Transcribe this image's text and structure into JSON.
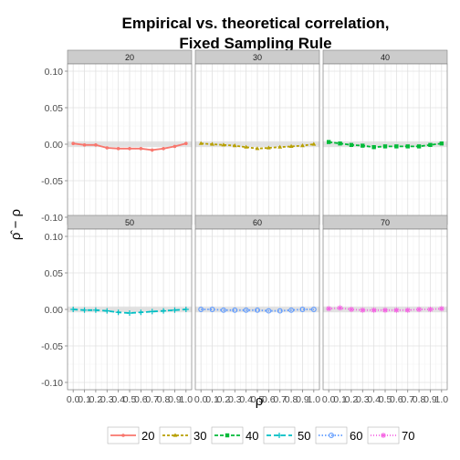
{
  "chart_data": {
    "type": "line",
    "title": [
      "Empirical vs. theoretical correlation,",
      "Fixed Sampling Rule"
    ],
    "xlabel": "ρ",
    "ylabel": "ρ̂ − ρ",
    "x": [
      0.0,
      0.1,
      0.2,
      0.3,
      0.4,
      0.5,
      0.6,
      0.7,
      0.8,
      0.9,
      1.0
    ],
    "x_tick_labels": [
      "0.0",
      "0.1",
      "0.2",
      "0.3",
      "0.4",
      "0.5",
      "0.6",
      "0.7",
      "0.8",
      "0.9",
      "1.0"
    ],
    "y_ticks": [
      0.1,
      0.05,
      0.0,
      -0.05,
      -0.1
    ],
    "y_tick_labels": [
      "0.10",
      "0.05",
      "0.00",
      "-0.05",
      "-0.10"
    ],
    "xlim": [
      -0.05,
      1.05
    ],
    "ylim": [
      -0.11,
      0.11
    ],
    "grid": true,
    "legend_position": "bottom",
    "facets": [
      "20",
      "30",
      "40",
      "50",
      "60",
      "70"
    ],
    "series": [
      {
        "name": "20",
        "color": "#F8766D",
        "marker": "dot",
        "values": [
          0.001,
          -0.001,
          -0.001,
          -0.005,
          -0.006,
          -0.006,
          -0.006,
          -0.008,
          -0.006,
          -0.003,
          0.001
        ]
      },
      {
        "name": "30",
        "color": "#B79F00",
        "marker": "triangle",
        "values": [
          0.001,
          0.0,
          -0.001,
          -0.002,
          -0.004,
          -0.006,
          -0.005,
          -0.004,
          -0.003,
          -0.002,
          0.0
        ]
      },
      {
        "name": "40",
        "color": "#00BA38",
        "marker": "square",
        "values": [
          0.003,
          0.001,
          -0.001,
          -0.002,
          -0.004,
          -0.003,
          -0.003,
          -0.003,
          -0.003,
          -0.001,
          0.001
        ]
      },
      {
        "name": "50",
        "color": "#00BFC4",
        "marker": "plus",
        "values": [
          0.0,
          -0.001,
          -0.001,
          -0.002,
          -0.004,
          -0.005,
          -0.004,
          -0.003,
          -0.002,
          -0.001,
          0.0
        ]
      },
      {
        "name": "60",
        "color": "#619CFF",
        "marker": "circle",
        "values": [
          0.0,
          0.0,
          -0.001,
          -0.001,
          -0.001,
          -0.001,
          -0.002,
          -0.002,
          -0.001,
          0.0,
          0.0
        ]
      },
      {
        "name": "70",
        "color": "#F564E3",
        "marker": "star",
        "values": [
          0.001,
          0.002,
          0.0,
          -0.001,
          -0.001,
          -0.001,
          -0.001,
          -0.001,
          0.0,
          0.0,
          0.001
        ]
      }
    ]
  }
}
